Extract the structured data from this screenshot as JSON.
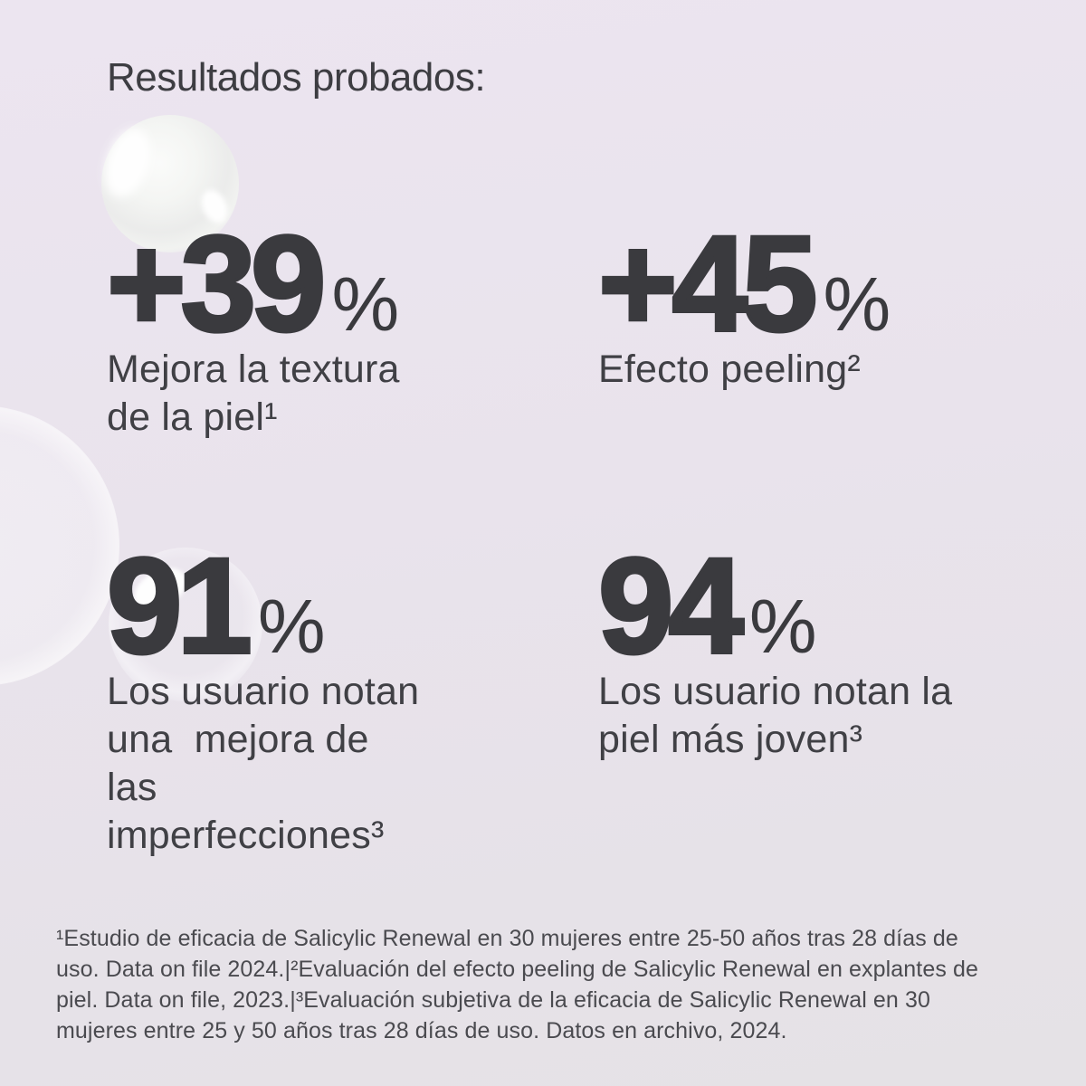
{
  "page": {
    "title": "Resultados probados:",
    "background_color": "#e9e3ec",
    "text_color": "#3a3a3e",
    "caption_color": "#404045",
    "footnote_color": "#4a4a4f"
  },
  "stats": [
    {
      "value": "+39",
      "unit": "%",
      "caption": "Mejora la textura\nde la piel¹"
    },
    {
      "value": "+45",
      "unit": "%",
      "caption": "Efecto peeling²"
    },
    {
      "value": "91",
      "unit": "%",
      "caption": "Los usuario notan\nuna  mejora de\nlas\nimperfecciones³"
    },
    {
      "value": "94",
      "unit": "%",
      "caption": "Los usuario notan la\npiel más joven³"
    }
  ],
  "footnote": "¹Estudio de eficacia de Salicylic Renewal en 30 mujeres entre 25-50 años tras 28 días de\nuso. Data on file 2024.|²Evaluación del efecto peeling de Salicylic Renewal en explantes de\npiel. Data on file, 2023.|³Evaluación subjetiva de la eficacia de Salicylic Renewal en 30\nmujeres entre 25 y 50 años tras 28 días de uso. Datos en archivo, 2024.",
  "decorations": {
    "bubble_top_left": "glass-bubble",
    "bubble_left_edge": "faint-glass-bubble",
    "bubble_over_91": "glass-bubble-with-highlight"
  }
}
